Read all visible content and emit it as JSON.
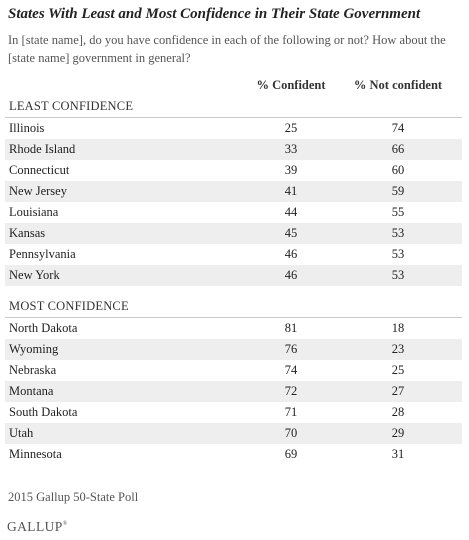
{
  "title": "States With Least and Most Confidence in Their State Government",
  "subtitle": "In [state name], do you have confidence in each of the following or not? How about the [state name] government in general?",
  "chart_data": {
    "type": "table",
    "columns": [
      "% Confident",
      "% Not confident"
    ],
    "sections": [
      {
        "label": "LEAST CONFIDENCE",
        "rows": [
          {
            "state": "Illinois",
            "confident": "25",
            "not_confident": "74"
          },
          {
            "state": "Rhode Island",
            "confident": "33",
            "not_confident": "66"
          },
          {
            "state": "Connecticut",
            "confident": "39",
            "not_confident": "60"
          },
          {
            "state": "New Jersey",
            "confident": "41",
            "not_confident": "59"
          },
          {
            "state": "Louisiana",
            "confident": "44",
            "not_confident": "55"
          },
          {
            "state": "Kansas",
            "confident": "45",
            "not_confident": "53"
          },
          {
            "state": "Pennsylvania",
            "confident": "46",
            "not_confident": "53"
          },
          {
            "state": "New York",
            "confident": "46",
            "not_confident": "53"
          }
        ]
      },
      {
        "label": "MOST CONFIDENCE",
        "rows": [
          {
            "state": "North Dakota",
            "confident": "81",
            "not_confident": "18"
          },
          {
            "state": "Wyoming",
            "confident": "76",
            "not_confident": "23"
          },
          {
            "state": "Nebraska",
            "confident": "74",
            "not_confident": "25"
          },
          {
            "state": "Montana",
            "confident": "72",
            "not_confident": "27"
          },
          {
            "state": "South Dakota",
            "confident": "71",
            "not_confident": "28"
          },
          {
            "state": "Utah",
            "confident": "70",
            "not_confident": "29"
          },
          {
            "state": "Minnesota",
            "confident": "69",
            "not_confident": "31"
          }
        ]
      }
    ]
  },
  "footnote": "2015 Gallup 50-State Poll",
  "logo": {
    "text": "GALLUP",
    "mark": "®"
  }
}
